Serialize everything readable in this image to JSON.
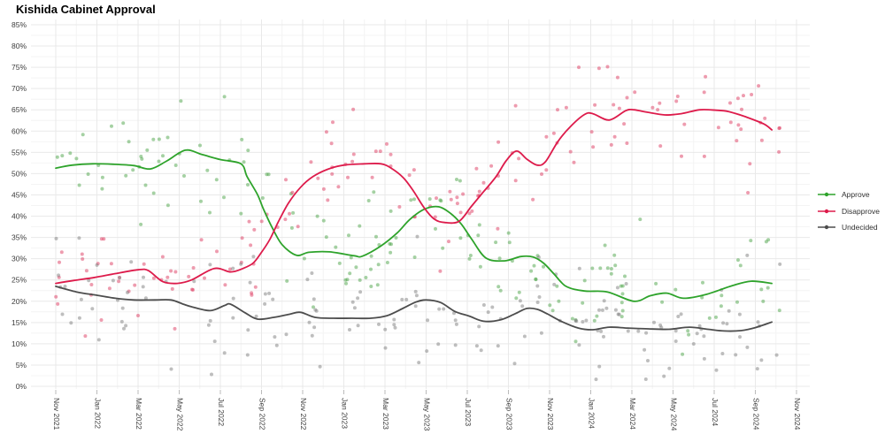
{
  "title": "Kishida Cabinet Approval",
  "chart_data": {
    "type": "scatter",
    "description": "Poll scatter points with smoothed (loess) trend lines for Japanese PM Kishida cabinet approval, disapproval and undecided shares, Nov 2021 - Nov 2024",
    "title": "Kishida Cabinet Approval",
    "xlabel": "",
    "ylabel": "",
    "grid": true,
    "legend_position": "right",
    "x_axis": {
      "start_month": "Nov 2021",
      "tick_labels": [
        "Nov 2021",
        "Jan 2022",
        "Mar 2022",
        "May 2022",
        "Jul 2022",
        "Sep 2022",
        "Nov 2022",
        "Jan 2023",
        "Mar 2023",
        "May 2023",
        "Jul 2023",
        "Sep 2023",
        "Nov 2023",
        "Jan 2024",
        "Mar 2024",
        "May 2024",
        "Jul 2024",
        "Sep 2024",
        "Nov 2024"
      ],
      "tick_months": [
        0,
        2,
        4,
        6,
        8,
        10,
        12,
        14,
        16,
        18,
        20,
        22,
        24,
        26,
        28,
        30,
        32,
        34,
        36
      ],
      "minor_months": [
        1,
        3,
        5,
        7,
        9,
        11,
        13,
        15,
        17,
        19,
        21,
        23,
        25,
        27,
        29,
        31,
        33,
        35
      ]
    },
    "y_axis": {
      "min": 0,
      "max": 85,
      "step": 5,
      "tick_labels": [
        "0%",
        "5%",
        "10%",
        "15%",
        "20%",
        "25%",
        "30%",
        "35%",
        "40%",
        "45%",
        "50%",
        "55%",
        "60%",
        "65%",
        "70%",
        "75%",
        "80%",
        "85%"
      ]
    },
    "series": [
      {
        "name": "Approve",
        "color": "#2ea32b",
        "scatter_color": "#4ba348",
        "trend": [
          [
            0,
            51.3
          ],
          [
            0.8,
            52.0
          ],
          [
            1.8,
            52.3
          ],
          [
            2.8,
            52.2
          ],
          [
            3.8,
            51.9
          ],
          [
            4.6,
            51.1
          ],
          [
            5.4,
            53.0
          ],
          [
            6.3,
            55.5
          ],
          [
            7.1,
            54.5
          ],
          [
            8,
            53.3
          ],
          [
            9,
            52.3
          ],
          [
            9.3,
            49.3
          ],
          [
            9.8,
            45.1
          ],
          [
            10.1,
            41.6
          ],
          [
            10.5,
            37.5
          ],
          [
            11,
            33.3
          ],
          [
            11.7,
            30.8
          ],
          [
            12.3,
            31.5
          ],
          [
            13.3,
            31.6
          ],
          [
            14.5,
            30.7
          ],
          [
            14.9,
            30.6
          ],
          [
            15.8,
            33.0
          ],
          [
            16.6,
            36.1
          ],
          [
            17.2,
            39.2
          ],
          [
            17.9,
            41.6
          ],
          [
            18.6,
            42.2
          ],
          [
            19.2,
            40.6
          ],
          [
            19.7,
            38.2
          ],
          [
            20.2,
            34.7
          ],
          [
            20.9,
            30.2
          ],
          [
            21.8,
            29.5
          ],
          [
            22.6,
            30.5
          ],
          [
            23.2,
            30.4
          ],
          [
            23.7,
            29.0
          ],
          [
            24.2,
            26.5
          ],
          [
            24.8,
            23.5
          ],
          [
            25.7,
            22.4
          ],
          [
            26.8,
            22.2
          ],
          [
            28.1,
            20.0
          ],
          [
            28.9,
            21.3
          ],
          [
            29.7,
            21.9
          ],
          [
            30.5,
            20.7
          ],
          [
            31.6,
            21.6
          ],
          [
            32.9,
            23.7
          ],
          [
            33.8,
            24.7
          ],
          [
            34.8,
            24.2
          ]
        ]
      },
      {
        "name": "Disapprove",
        "color": "#dd1b4b",
        "scatter_color": "#dd3a60",
        "trend": [
          [
            0,
            24.2
          ],
          [
            0.9,
            24.9
          ],
          [
            1.9,
            25.6
          ],
          [
            2.9,
            26.5
          ],
          [
            4,
            27.4
          ],
          [
            4.5,
            27.2
          ],
          [
            5.2,
            24.6
          ],
          [
            5.9,
            24.2
          ],
          [
            6.6,
            25.0
          ],
          [
            7.7,
            27.7
          ],
          [
            8.5,
            26.9
          ],
          [
            9.1,
            27.7
          ],
          [
            9.6,
            29.0
          ],
          [
            10,
            31.5
          ],
          [
            10.4,
            34.5
          ],
          [
            10.8,
            38.5
          ],
          [
            11.3,
            43.0
          ],
          [
            11.9,
            46.8
          ],
          [
            12.5,
            49.3
          ],
          [
            13.2,
            51.0
          ],
          [
            14,
            52.0
          ],
          [
            15,
            52.3
          ],
          [
            15.8,
            52.3
          ],
          [
            16.3,
            51.3
          ],
          [
            16.9,
            49.0
          ],
          [
            17.4,
            45.8
          ],
          [
            17.9,
            42.0
          ],
          [
            18.4,
            39.3
          ],
          [
            18.9,
            38.5
          ],
          [
            19.6,
            38.8
          ],
          [
            20.2,
            42.3
          ],
          [
            20.8,
            45.8
          ],
          [
            21.4,
            49.3
          ],
          [
            21.9,
            53.1
          ],
          [
            22.4,
            55.3
          ],
          [
            22.9,
            53.4
          ],
          [
            23.4,
            52.0
          ],
          [
            23.8,
            52.8
          ],
          [
            24.4,
            57.5
          ],
          [
            25,
            61.0
          ],
          [
            25.7,
            63.9
          ],
          [
            26.1,
            64.1
          ],
          [
            26.9,
            62.6
          ],
          [
            27.7,
            64.8
          ],
          [
            28.1,
            65.0
          ],
          [
            28.8,
            64.4
          ],
          [
            29.6,
            63.8
          ],
          [
            30.4,
            64.1
          ],
          [
            31.3,
            65.0
          ],
          [
            32.1,
            64.9
          ],
          [
            32.7,
            64.6
          ],
          [
            33.5,
            63.4
          ],
          [
            34.4,
            61.7
          ],
          [
            34.8,
            60.3
          ]
        ]
      },
      {
        "name": "Undecided",
        "color": "#4d4d4d",
        "scatter_color": "#7d7d7d",
        "trend": [
          [
            0,
            23.5
          ],
          [
            1,
            22.2
          ],
          [
            2,
            21.4
          ],
          [
            2.9,
            20.7
          ],
          [
            3.8,
            20.3
          ],
          [
            4.8,
            20.3
          ],
          [
            5.6,
            20.3
          ],
          [
            6.2,
            19.3
          ],
          [
            6.6,
            18.7
          ],
          [
            7.5,
            17.8
          ],
          [
            8.2,
            19.0
          ],
          [
            8.5,
            19.3
          ],
          [
            9.2,
            17.3
          ],
          [
            9.8,
            15.8
          ],
          [
            10.6,
            16.2
          ],
          [
            11.4,
            17.0
          ],
          [
            11.9,
            17.4
          ],
          [
            12.6,
            16.2
          ],
          [
            13.5,
            16.0
          ],
          [
            14.4,
            16.0
          ],
          [
            15.3,
            16.0
          ],
          [
            16.1,
            16.6
          ],
          [
            16.9,
            18.4
          ],
          [
            17.5,
            19.8
          ],
          [
            18,
            20.3
          ],
          [
            18.7,
            19.7
          ],
          [
            19.4,
            17.6
          ],
          [
            20.1,
            16.5
          ],
          [
            20.8,
            15.3
          ],
          [
            21.6,
            15.6
          ],
          [
            22.3,
            17.0
          ],
          [
            22.9,
            18.3
          ],
          [
            23.4,
            18.1
          ],
          [
            23.9,
            17.0
          ],
          [
            24.6,
            15.2
          ],
          [
            25.4,
            13.7
          ],
          [
            26.1,
            13.3
          ],
          [
            26.9,
            13.9
          ],
          [
            27.8,
            13.7
          ],
          [
            28.8,
            13.5
          ],
          [
            29.8,
            13.4
          ],
          [
            30.8,
            13.9
          ],
          [
            31.7,
            13.4
          ],
          [
            32.5,
            13.0
          ],
          [
            33.3,
            13.1
          ],
          [
            34,
            13.8
          ],
          [
            34.8,
            15.1
          ]
        ]
      }
    ],
    "scatter_render": {
      "note": "raw poll dots approximated as trend + gaussian noise",
      "points_per_series": 165,
      "sigma": 6,
      "dot_radius": 2,
      "dot_opacity": 0.5,
      "seeds": [
        11,
        23,
        37
      ],
      "x_max_month": 35.2
    },
    "style": {
      "grid_major_color": "#e9e9e9",
      "grid_minor_color": "#f4f4f4",
      "axis_text_color": "#3c3c3c",
      "tick_mark_color": "#bbbbbb",
      "background": "#ffffff"
    }
  }
}
